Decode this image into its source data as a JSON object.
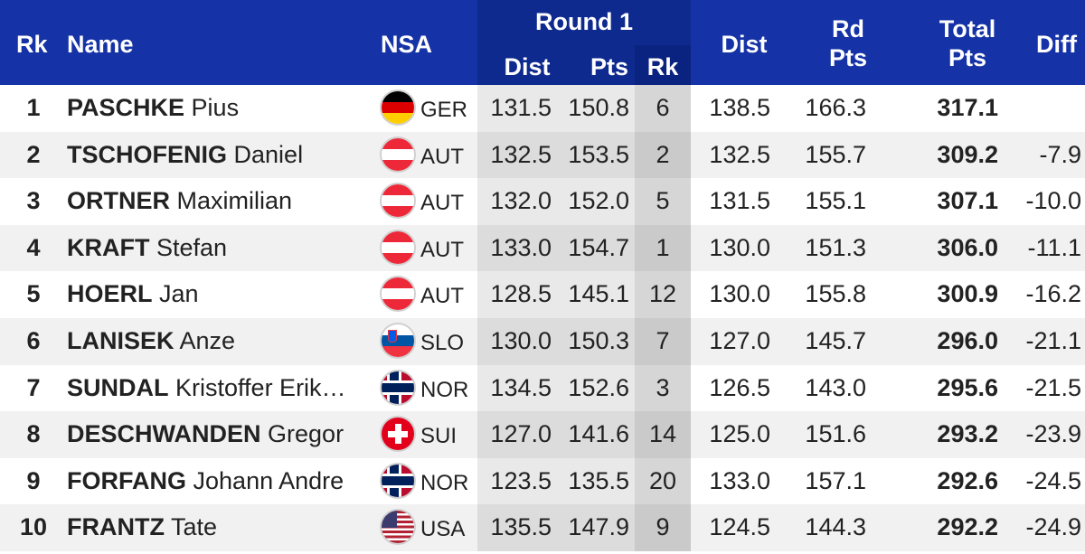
{
  "header": {
    "rk": "Rk",
    "name": "Name",
    "nsa": "NSA",
    "round1": "Round 1",
    "r1_dist": "Dist",
    "r1_pts": "Pts",
    "r1_rk": "Rk",
    "dist": "Dist",
    "rd_pts_line1": "Rd",
    "rd_pts_line2": "Pts",
    "total_line1": "Total",
    "total_line2": "Pts",
    "diff": "Diff"
  },
  "colors": {
    "header_bg": "#1533a6",
    "round_header_bg": "#0f2a8f",
    "text": "#222222"
  },
  "rows": [
    {
      "rk": "1",
      "last": "PASCHKE",
      "first": "Pius",
      "flag": "germany-flag-icon",
      "nsa": "GER",
      "r1_dist": "131.5",
      "r1_pts": "150.8",
      "r1_rk": "6",
      "dist": "138.5",
      "rd_pts": "166.3",
      "total": "317.1",
      "diff": ""
    },
    {
      "rk": "2",
      "last": "TSCHOFENIG",
      "first": "Daniel",
      "flag": "austria-flag-icon",
      "nsa": "AUT",
      "r1_dist": "132.5",
      "r1_pts": "153.5",
      "r1_rk": "2",
      "dist": "132.5",
      "rd_pts": "155.7",
      "total": "309.2",
      "diff": "-7.9"
    },
    {
      "rk": "3",
      "last": "ORTNER",
      "first": "Maximilian",
      "flag": "austria-flag-icon",
      "nsa": "AUT",
      "r1_dist": "132.0",
      "r1_pts": "152.0",
      "r1_rk": "5",
      "dist": "131.5",
      "rd_pts": "155.1",
      "total": "307.1",
      "diff": "-10.0"
    },
    {
      "rk": "4",
      "last": "KRAFT",
      "first": "Stefan",
      "flag": "austria-flag-icon",
      "nsa": "AUT",
      "r1_dist": "133.0",
      "r1_pts": "154.7",
      "r1_rk": "1",
      "dist": "130.0",
      "rd_pts": "151.3",
      "total": "306.0",
      "diff": "-11.1"
    },
    {
      "rk": "5",
      "last": "HOERL",
      "first": "Jan",
      "flag": "austria-flag-icon",
      "nsa": "AUT",
      "r1_dist": "128.5",
      "r1_pts": "145.1",
      "r1_rk": "12",
      "dist": "130.0",
      "rd_pts": "155.8",
      "total": "300.9",
      "diff": "-16.2"
    },
    {
      "rk": "6",
      "last": "LANISEK",
      "first": "Anze",
      "flag": "slovenia-flag-icon",
      "nsa": "SLO",
      "r1_dist": "130.0",
      "r1_pts": "150.3",
      "r1_rk": "7",
      "dist": "127.0",
      "rd_pts": "145.7",
      "total": "296.0",
      "diff": "-21.1"
    },
    {
      "rk": "7",
      "last": "SUNDAL",
      "first": "Kristoffer Erik…",
      "flag": "norway-flag-icon",
      "nsa": "NOR",
      "r1_dist": "134.5",
      "r1_pts": "152.6",
      "r1_rk": "3",
      "dist": "126.5",
      "rd_pts": "143.0",
      "total": "295.6",
      "diff": "-21.5"
    },
    {
      "rk": "8",
      "last": "DESCHWANDEN",
      "first": "Gregor",
      "flag": "switzerland-flag-icon",
      "nsa": "SUI",
      "r1_dist": "127.0",
      "r1_pts": "141.6",
      "r1_rk": "14",
      "dist": "125.0",
      "rd_pts": "151.6",
      "total": "293.2",
      "diff": "-23.9"
    },
    {
      "rk": "9",
      "last": "FORFANG",
      "first": "Johann Andre",
      "flag": "norway-flag-icon",
      "nsa": "NOR",
      "r1_dist": "123.5",
      "r1_pts": "135.5",
      "r1_rk": "20",
      "dist": "133.0",
      "rd_pts": "157.1",
      "total": "292.6",
      "diff": "-24.5"
    },
    {
      "rk": "10",
      "last": "FRANTZ",
      "first": "Tate",
      "flag": "usa-flag-icon",
      "nsa": "USA",
      "r1_dist": "135.5",
      "r1_pts": "147.9",
      "r1_rk": "9",
      "dist": "124.5",
      "rd_pts": "144.3",
      "total": "292.2",
      "diff": "-24.9"
    }
  ]
}
